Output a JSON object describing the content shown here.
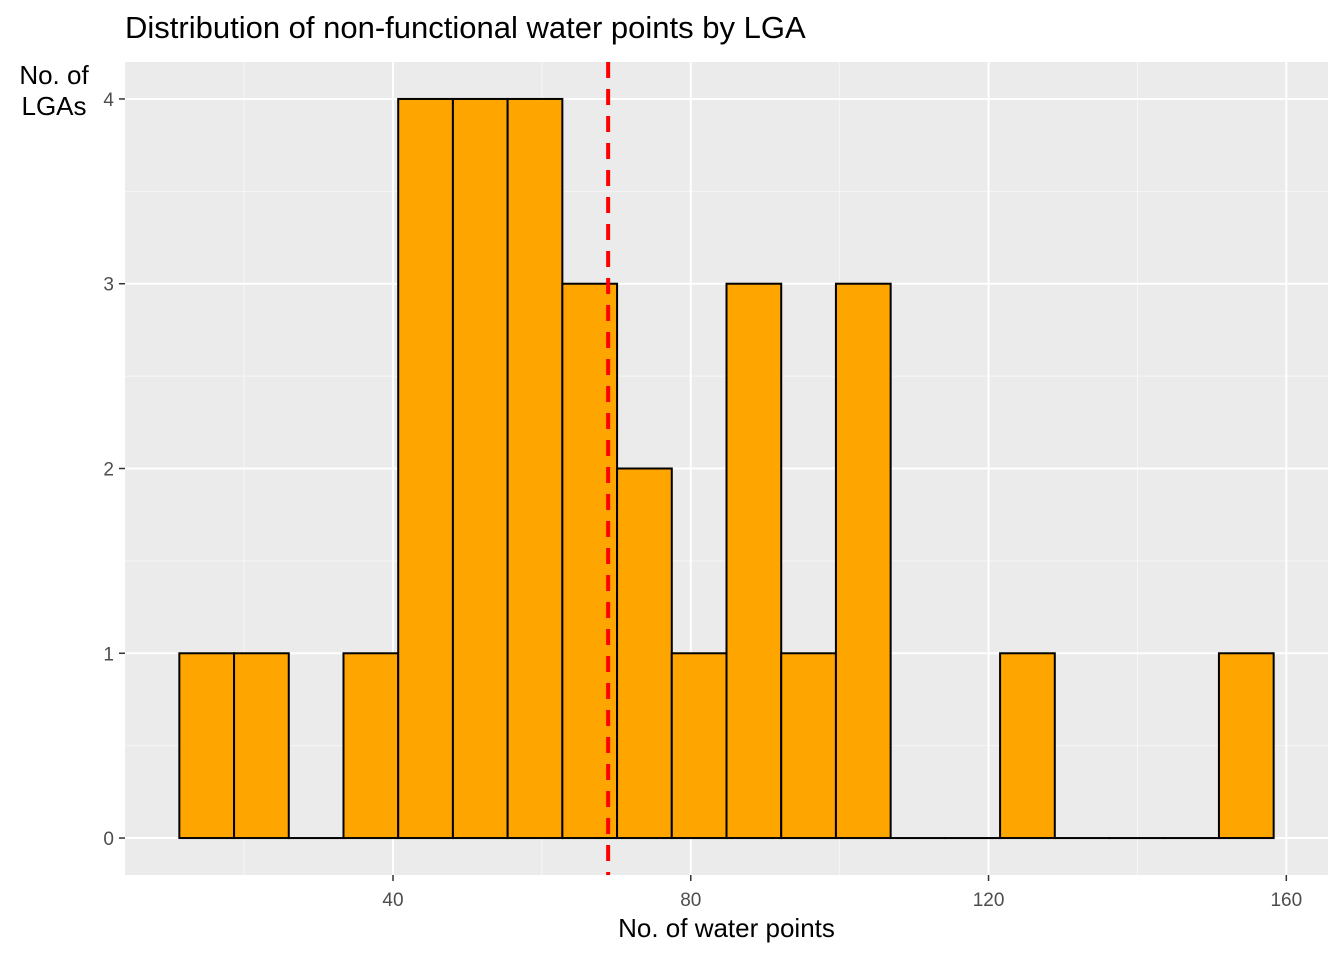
{
  "chart_data": {
    "type": "bar",
    "title": "Distribution of non-functional water points by LGA",
    "xlabel": "No. of water points",
    "ylabel": "No. of LGAs",
    "bin_width": 7.35,
    "bin_start": 11.3,
    "bins": [
      {
        "x0": 11.3,
        "x1": 18.65,
        "count": 1
      },
      {
        "x0": 18.65,
        "x1": 26.0,
        "count": 1
      },
      {
        "x0": 26.0,
        "x1": 33.35,
        "count": 0
      },
      {
        "x0": 33.35,
        "x1": 40.7,
        "count": 1
      },
      {
        "x0": 40.7,
        "x1": 48.05,
        "count": 4
      },
      {
        "x0": 48.05,
        "x1": 55.4,
        "count": 4
      },
      {
        "x0": 55.4,
        "x1": 62.75,
        "count": 4
      },
      {
        "x0": 62.75,
        "x1": 70.1,
        "count": 3
      },
      {
        "x0": 70.1,
        "x1": 77.45,
        "count": 2
      },
      {
        "x0": 77.45,
        "x1": 84.8,
        "count": 1
      },
      {
        "x0": 84.8,
        "x1": 92.15,
        "count": 3
      },
      {
        "x0": 92.15,
        "x1": 99.5,
        "count": 1
      },
      {
        "x0": 99.5,
        "x1": 106.85,
        "count": 3
      },
      {
        "x0": 106.85,
        "x1": 114.2,
        "count": 0
      },
      {
        "x0": 114.2,
        "x1": 121.55,
        "count": 0
      },
      {
        "x0": 121.55,
        "x1": 128.9,
        "count": 1
      },
      {
        "x0": 128.9,
        "x1": 136.25,
        "count": 0
      },
      {
        "x0": 136.25,
        "x1": 143.6,
        "count": 0
      },
      {
        "x0": 143.6,
        "x1": 150.95,
        "count": 0
      },
      {
        "x0": 150.95,
        "x1": 158.3,
        "count": 1
      }
    ],
    "mean_line": 68.9,
    "xlim": [
      4.0,
      165.6
    ],
    "ylim": [
      -0.2,
      4.2
    ],
    "x_ticks": [
      40,
      80,
      120,
      160
    ],
    "y_ticks": [
      0,
      1,
      2,
      3,
      4
    ],
    "grid": true,
    "colors": {
      "panel_background": "#ebebeb",
      "grid_major": "#ffffff",
      "bar_fill": "#ffa500",
      "bar_outline": "#000000",
      "mean_line": "#ff0000",
      "tick_text": "#4d4d4d"
    }
  }
}
